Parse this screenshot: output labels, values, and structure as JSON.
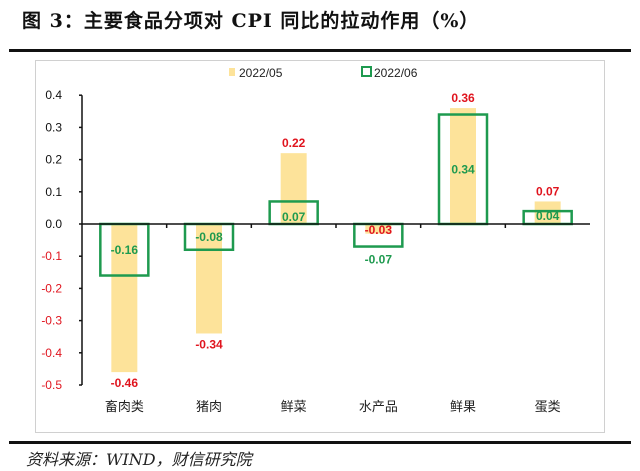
{
  "title": "图 3：主要食品分项对 CPI 同比的拉动作用（%）",
  "source": "资料来源：WIND，财信研究院",
  "colors": {
    "series_2022_05": "#fde39a",
    "series_2022_06": "#1e9a4f",
    "label_2022_05": "#e0141e",
    "label_2022_06": "#1e9a4f",
    "negative_tick": "#e0141e"
  },
  "chart_data": {
    "type": "bar",
    "categories": [
      "畜肉类",
      "猪肉",
      "鲜菜",
      "水产品",
      "鲜果",
      "蛋类"
    ],
    "series": [
      {
        "name": "2022/05",
        "values": [
          -0.46,
          -0.34,
          0.22,
          -0.03,
          0.36,
          0.07
        ],
        "style": "filled"
      },
      {
        "name": "2022/06",
        "values": [
          -0.16,
          -0.08,
          0.07,
          -0.07,
          0.34,
          0.04
        ],
        "style": "outline"
      }
    ],
    "ylim": [
      -0.5,
      0.4
    ],
    "yticks": [
      "0.4",
      "0.3",
      "0.2",
      "0.1",
      "0.0",
      "-0.1",
      "-0.2",
      "-0.3",
      "-0.4",
      "-0.5"
    ],
    "ytick_values": [
      0.4,
      0.3,
      0.2,
      0.1,
      0.0,
      -0.1,
      -0.2,
      -0.3,
      -0.4,
      -0.5
    ],
    "grid": false,
    "legend": "top",
    "data_labels": [
      [
        "-0.46",
        "-0.34",
        "0.22",
        "-0.03",
        "0.36",
        "0.07"
      ],
      [
        "-0.16",
        "-0.08",
        "0.07",
        "-0.07",
        "0.34",
        "0.04"
      ]
    ]
  }
}
